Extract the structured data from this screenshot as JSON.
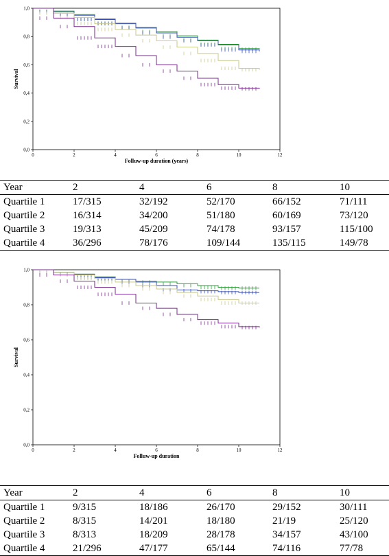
{
  "chart_data": [
    {
      "type": "line",
      "title": "",
      "xlabel": "Folluw-up duration (years)",
      "ylabel": "Survival",
      "xlim": [
        0,
        12
      ],
      "ylim": [
        0,
        1.0
      ],
      "x_ticks": [
        "0",
        "2",
        "4",
        "6",
        "8",
        "10",
        "12"
      ],
      "y_ticks": [
        "0,0",
        "0,2",
        "0,4",
        "0,6",
        "0,8",
        "1,0"
      ],
      "series": [
        {
          "color": "#2e9e3b",
          "points": [
            [
              0,
              1.0
            ],
            [
              1,
              0.98
            ],
            [
              2,
              0.955
            ],
            [
              3,
              0.925
            ],
            [
              4,
              0.895
            ],
            [
              5,
              0.865
            ],
            [
              6,
              0.835
            ],
            [
              7,
              0.805
            ],
            [
              8,
              0.775
            ],
            [
              9,
              0.745
            ],
            [
              10,
              0.715
            ],
            [
              11,
              0.71
            ]
          ]
        },
        {
          "color": "#3a50b5",
          "points": [
            [
              0,
              1.0
            ],
            [
              1,
              0.975
            ],
            [
              2,
              0.95
            ],
            [
              3,
              0.92
            ],
            [
              4,
              0.89
            ],
            [
              5,
              0.86
            ],
            [
              6,
              0.825
            ],
            [
              7,
              0.795
            ],
            [
              8,
              0.77
            ],
            [
              9,
              0.74
            ],
            [
              10,
              0.705
            ],
            [
              11,
              0.695
            ]
          ]
        },
        {
          "color": "#c9c98a",
          "points": [
            [
              0,
              1.0
            ],
            [
              1,
              0.965
            ],
            [
              2,
              0.935
            ],
            [
              3,
              0.89
            ],
            [
              4,
              0.85
            ],
            [
              5,
              0.81
            ],
            [
              6,
              0.77
            ],
            [
              7,
              0.725
            ],
            [
              8,
              0.68
            ],
            [
              9,
              0.63
            ],
            [
              10,
              0.575
            ],
            [
              11,
              0.565
            ]
          ]
        },
        {
          "color": "#7b2a8e",
          "points": [
            [
              0,
              1.0
            ],
            [
              1,
              0.93
            ],
            [
              2,
              0.87
            ],
            [
              3,
              0.79
            ],
            [
              4,
              0.73
            ],
            [
              5,
              0.665
            ],
            [
              6,
              0.6
            ],
            [
              7,
              0.555
            ],
            [
              8,
              0.505
            ],
            [
              9,
              0.46
            ],
            [
              10,
              0.435
            ],
            [
              11,
              0.43
            ]
          ]
        }
      ]
    },
    {
      "type": "line",
      "title": "",
      "xlabel": "Folluw-up duration",
      "ylabel": "Survival",
      "xlim": [
        0,
        12
      ],
      "ylim": [
        0,
        1.0
      ],
      "x_ticks": [
        "0",
        "2",
        "4",
        "6",
        "8",
        "10",
        "12"
      ],
      "y_ticks": [
        "0,0",
        "0,2",
        "0,4",
        "0,6",
        "0,8",
        "1,0"
      ],
      "series": [
        {
          "color": "#2e9e3b",
          "points": [
            [
              0,
              1.0
            ],
            [
              1,
              0.985
            ],
            [
              2,
              0.975
            ],
            [
              3,
              0.96
            ],
            [
              4,
              0.945
            ],
            [
              5,
              0.935
            ],
            [
              6,
              0.93
            ],
            [
              7,
              0.92
            ],
            [
              8,
              0.91
            ],
            [
              9,
              0.9
            ],
            [
              10,
              0.895
            ],
            [
              11,
              0.895
            ]
          ]
        },
        {
          "color": "#3a50b5",
          "points": [
            [
              0,
              1.0
            ],
            [
              1,
              0.985
            ],
            [
              2,
              0.975
            ],
            [
              3,
              0.955
            ],
            [
              4,
              0.945
            ],
            [
              5,
              0.93
            ],
            [
              6,
              0.91
            ],
            [
              7,
              0.885
            ],
            [
              8,
              0.88
            ],
            [
              9,
              0.875
            ],
            [
              10,
              0.87
            ],
            [
              11,
              0.87
            ]
          ]
        },
        {
          "color": "#c9c98a",
          "points": [
            [
              0,
              1.0
            ],
            [
              1,
              0.985
            ],
            [
              2,
              0.97
            ],
            [
              3,
              0.95
            ],
            [
              4,
              0.93
            ],
            [
              5,
              0.91
            ],
            [
              6,
              0.89
            ],
            [
              7,
              0.87
            ],
            [
              8,
              0.85
            ],
            [
              9,
              0.83
            ],
            [
              10,
              0.81
            ],
            [
              11,
              0.81
            ]
          ]
        },
        {
          "color": "#7b2a8e",
          "points": [
            [
              0,
              1.0
            ],
            [
              1,
              0.97
            ],
            [
              2,
              0.935
            ],
            [
              3,
              0.9
            ],
            [
              4,
              0.86
            ],
            [
              5,
              0.81
            ],
            [
              6,
              0.78
            ],
            [
              7,
              0.745
            ],
            [
              8,
              0.715
            ],
            [
              9,
              0.695
            ],
            [
              10,
              0.675
            ],
            [
              11,
              0.67
            ]
          ]
        }
      ]
    }
  ],
  "tables": [
    {
      "header": [
        "Year",
        "2",
        "4",
        "6",
        "8",
        "10"
      ],
      "rows": [
        [
          "Quartile 1",
          "17/315",
          "32/192",
          "52/170",
          "66/152",
          "71/111"
        ],
        [
          "Quartile 2",
          "16/314",
          "34/200",
          "51/180",
          "60/169",
          "73/120"
        ],
        [
          "Quartile 3",
          "19/313",
          "45/209",
          "74/178",
          "93/157",
          "115/100"
        ],
        [
          "Quartile 4",
          "36/296",
          "78/176",
          "109/144",
          "135/115",
          "149/78"
        ]
      ]
    },
    {
      "header": [
        "Year",
        "2",
        "4",
        "6",
        "8",
        "10"
      ],
      "rows": [
        [
          "Quartile 1",
          "9/315",
          "18/186",
          "26/170",
          "29/152",
          "30/111"
        ],
        [
          "Quartile 2",
          "8/315",
          "14/201",
          "18/180",
          "21/19",
          "25/120"
        ],
        [
          "Quartile 3",
          "8/313",
          "18/209",
          "28/178",
          "34/157",
          "43/100"
        ],
        [
          "Quartile 4",
          "21/296",
          "47/177",
          "65/144",
          "74/116",
          "77/78"
        ]
      ]
    }
  ]
}
